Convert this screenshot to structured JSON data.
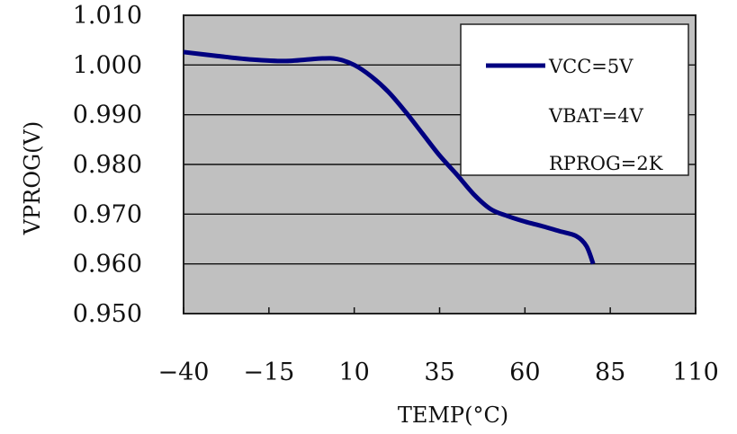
{
  "chart_data": {
    "type": "line",
    "xlabel": "TEMP(°C)",
    "ylabel": "VPROG(V)",
    "xlim": [
      -40,
      110
    ],
    "ylim": [
      0.95,
      1.01
    ],
    "x_ticks": [
      "-40",
      "-15",
      "10",
      "35",
      "60",
      "85",
      "110"
    ],
    "x_tick_values": [
      -40,
      -15,
      10,
      35,
      60,
      85,
      110
    ],
    "y_ticks": [
      "1.010",
      "1.000",
      "0.990",
      "0.980",
      "0.970",
      "0.960",
      "0.950"
    ],
    "y_tick_values": [
      1.01,
      1.0,
      0.99,
      0.98,
      0.97,
      0.96,
      0.95
    ],
    "grid": "horizontal",
    "plot_background": "#c0c0c0",
    "series": [
      {
        "name": "VCC=5V",
        "color": "#000080",
        "x": [
          -40,
          -30,
          -20,
          -10,
          0,
          5,
          10,
          15,
          20,
          25,
          30,
          35,
          40,
          45,
          50,
          55,
          60,
          65,
          70,
          75,
          78,
          80
        ],
        "y": [
          1.0026,
          1.0018,
          1.0011,
          1.0008,
          1.0013,
          1.0012,
          1.0,
          0.9977,
          0.9946,
          0.9906,
          0.9862,
          0.9818,
          0.978,
          0.974,
          0.971,
          0.9696,
          0.9685,
          0.9676,
          0.9666,
          0.9656,
          0.9636,
          0.96
        ]
      }
    ],
    "legend": {
      "placement": "top-right",
      "entries": [
        "VCC=5V",
        "VBAT=4V",
        "RPROG=2K"
      ]
    }
  }
}
